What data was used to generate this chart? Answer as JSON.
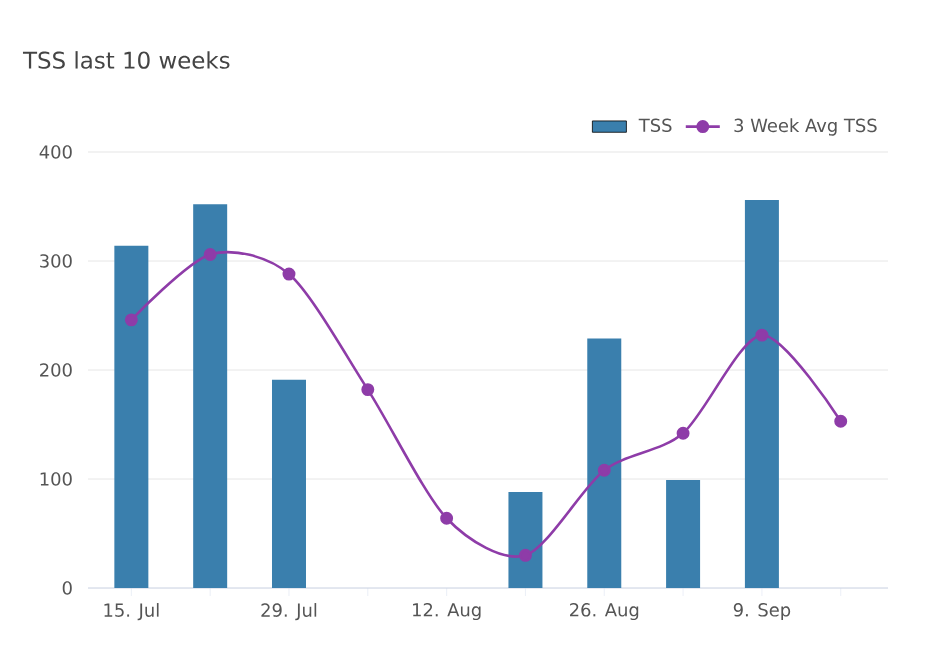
{
  "chart_data": {
    "type": "bar",
    "title": "TSS last 10 weeks",
    "categories": [
      "15. Jul",
      null,
      "29. Jul",
      null,
      "12. Aug",
      null,
      "26. Aug",
      null,
      "9. Sep",
      null
    ],
    "series": [
      {
        "name": "TSS",
        "color": "#3a7fad",
        "values": [
          314,
          352,
          191,
          null,
          null,
          88,
          229,
          99,
          356,
          null
        ]
      },
      {
        "name": "3 Week Avg TSS",
        "type": "line",
        "color": "#8e3ca8",
        "marker": "circle",
        "values": [
          246,
          306,
          288,
          182,
          64,
          30,
          108,
          142,
          232,
          153
        ]
      }
    ],
    "ylim": [
      0,
      400
    ],
    "yticks": [
      0,
      100,
      200,
      300,
      400
    ],
    "grid": "y",
    "legend": "top right"
  }
}
